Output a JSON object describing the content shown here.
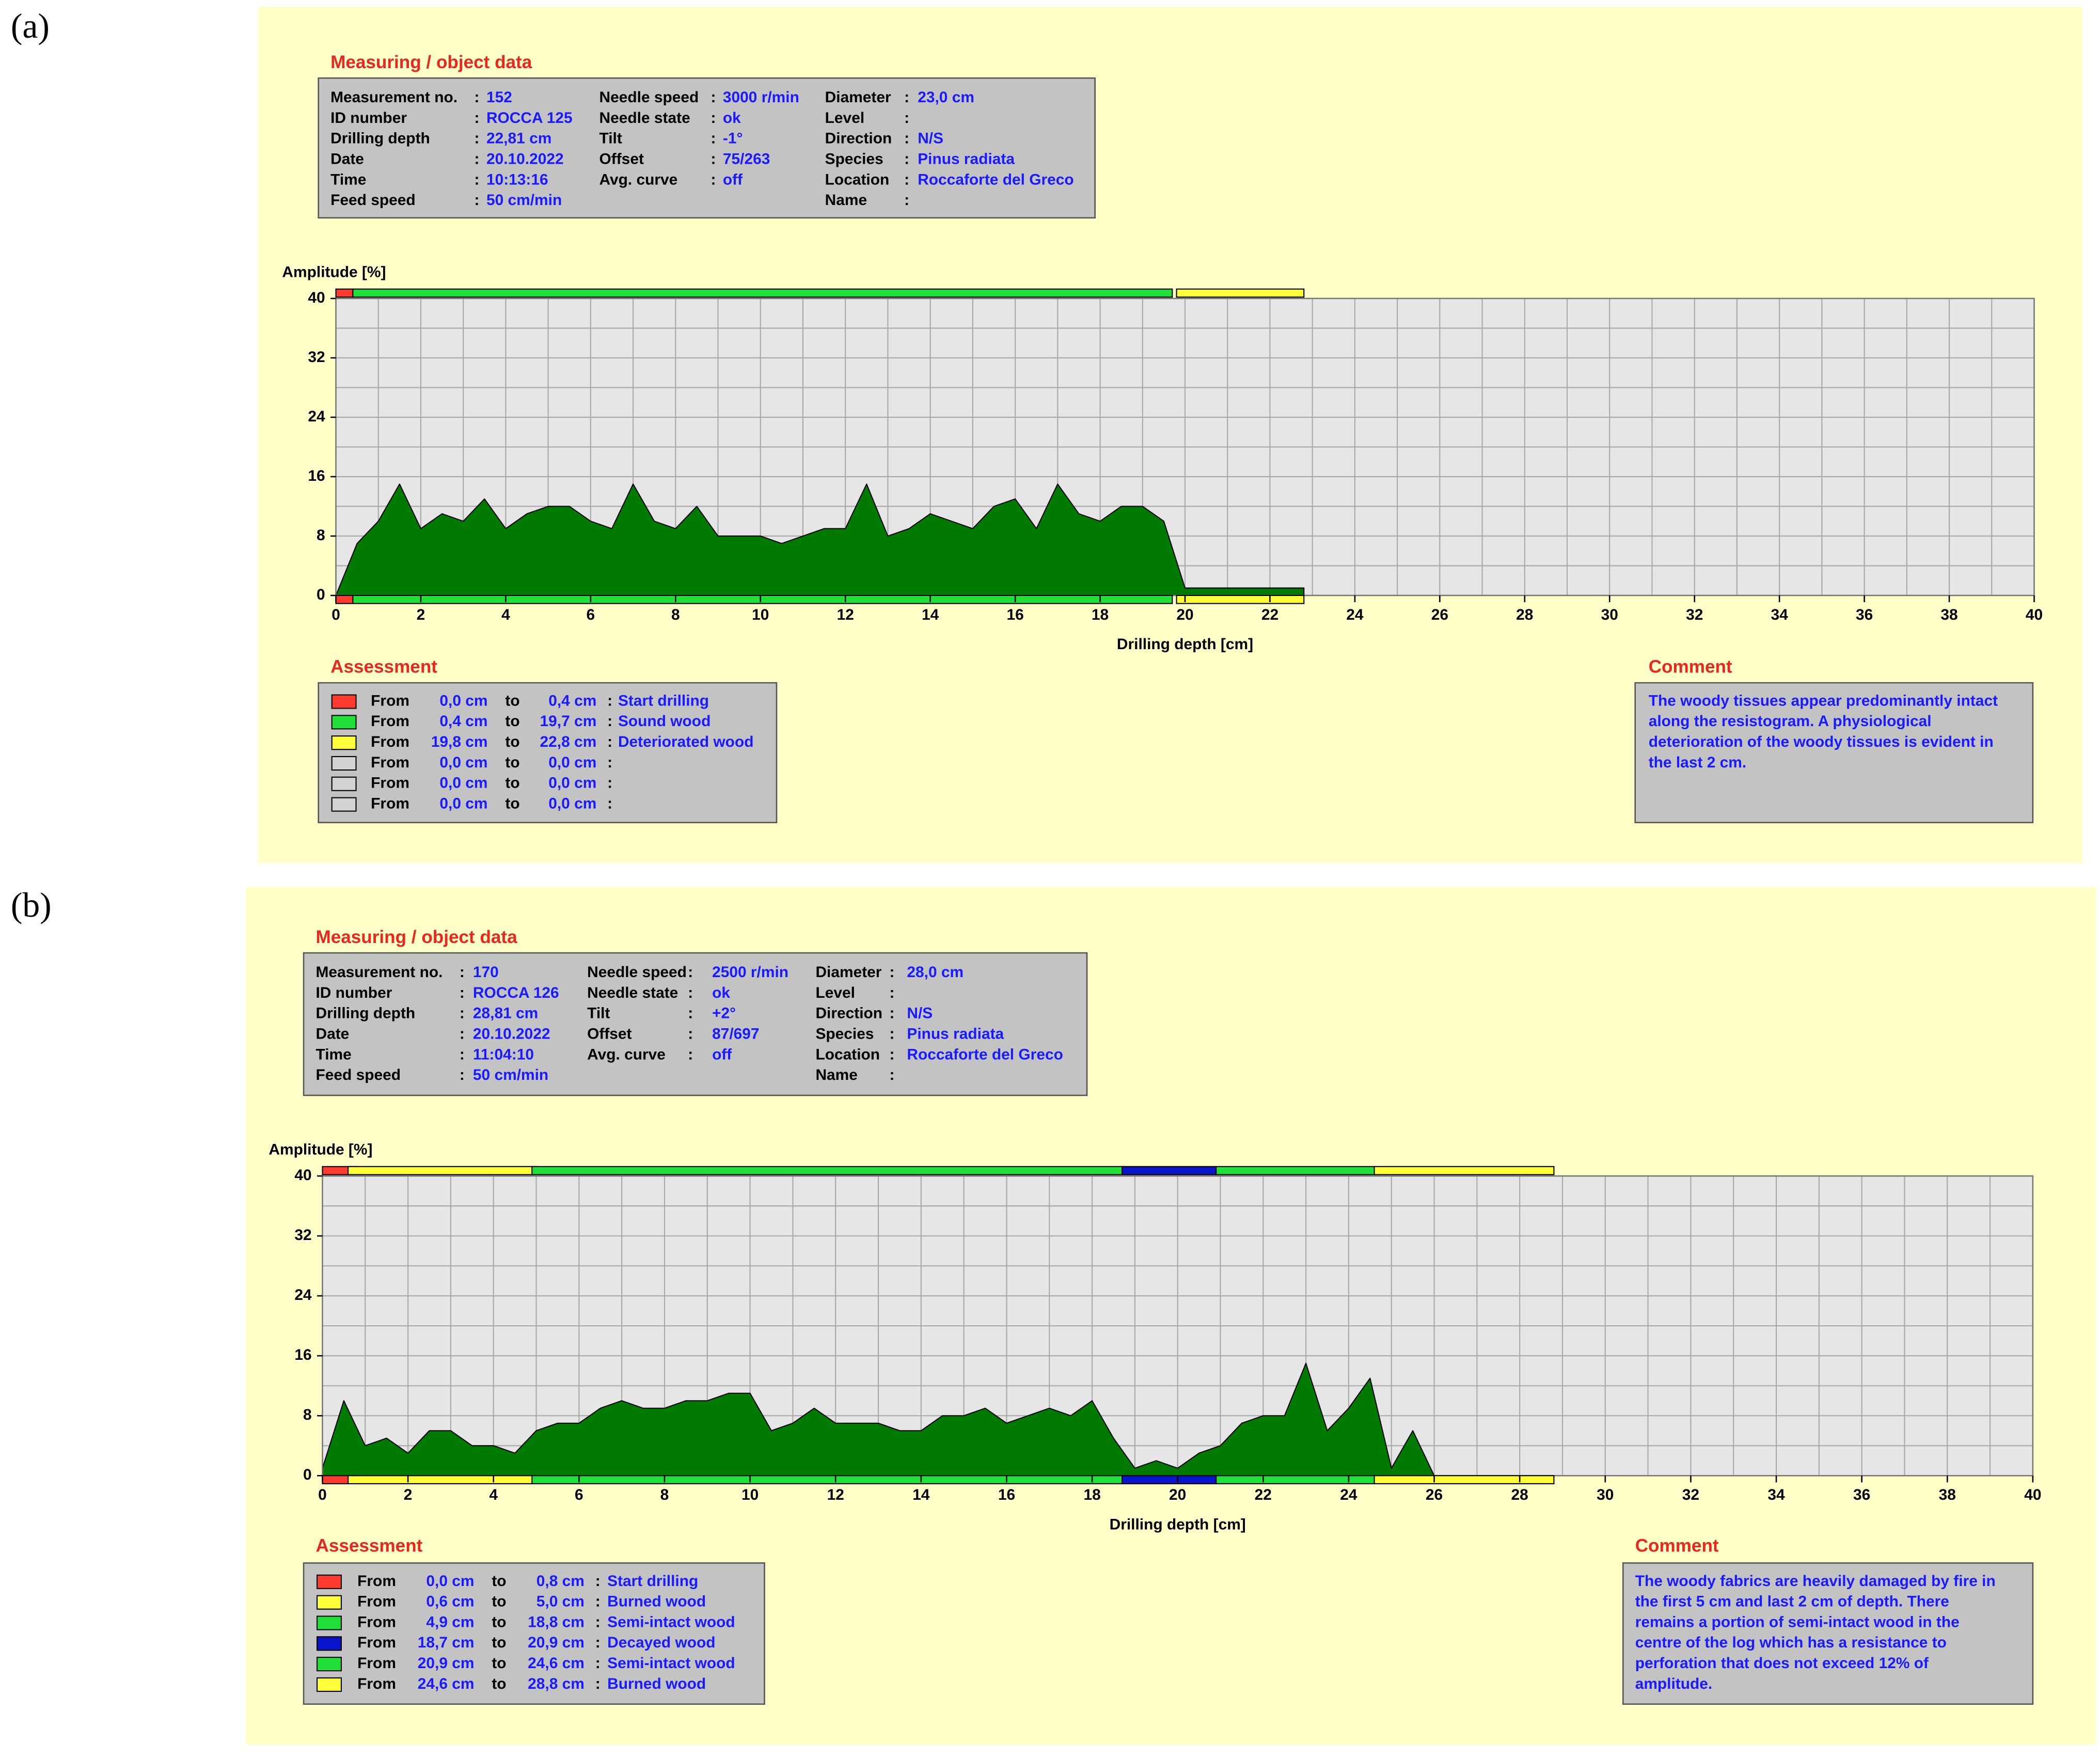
{
  "panels": [
    {
      "label": "(a)",
      "measuring": {
        "title": "Measuring / object data",
        "separator": ":",
        "columns": [
          [
            {
              "label": "Measurement no.",
              "value": "152"
            },
            {
              "label": "ID number",
              "value": "ROCCA 125"
            },
            {
              "label": "Drilling depth",
              "value": "22,81 cm"
            },
            {
              "label": "Date",
              "value": "20.10.2022"
            },
            {
              "label": "Time",
              "value": "10:13:16"
            },
            {
              "label": "Feed speed",
              "value": "50 cm/min"
            }
          ],
          [
            {
              "label": "Needle speed",
              "value": "3000 r/min"
            },
            {
              "label": "Needle state",
              "value": "ok"
            },
            {
              "label": "Tilt",
              "value": "-1°"
            },
            {
              "label": "Offset",
              "value": "75/263"
            },
            {
              "label": "Avg. curve",
              "value": "off"
            }
          ],
          [
            {
              "label": "Diameter",
              "value": "23,0 cm"
            },
            {
              "label": "Level"
            },
            {
              "label": "Direction",
              "value": "N/S"
            },
            {
              "label": "Species",
              "value": "Pinus radiata"
            },
            {
              "label": "Location",
              "value": "Roccaforte del Greco"
            },
            {
              "label": "Name"
            }
          ]
        ]
      },
      "assessment": {
        "title": "Assessment",
        "from_text": "From",
        "to_text": "to",
        "separator": ":",
        "rows": [
          {
            "color": "#ff3b2f",
            "from": {
              "value": 0,
              "label": "0,0 cm"
            },
            "to": {
              "value": 0.4,
              "label": "0,4 cm"
            },
            "name": "Start drilling"
          },
          {
            "color": "#22e03a",
            "from": {
              "value": 0.4,
              "label": "0,4 cm"
            },
            "to": {
              "value": 19.7,
              "label": "19,7 cm"
            },
            "name": "Sound wood"
          },
          {
            "color": "#ffff3a",
            "from": {
              "value": 19.8,
              "label": "19,8 cm"
            },
            "to": {
              "value": 22.8,
              "label": "22,8 cm"
            },
            "name": "Deteriorated wood"
          },
          {
            "color": "#d2d2d2",
            "from": {
              "value": 0,
              "label": "0,0 cm"
            },
            "to": {
              "value": 0,
              "label": "0,0 cm"
            }
          },
          {
            "color": "#d2d2d2",
            "from": {
              "value": 0,
              "label": "0,0 cm"
            },
            "to": {
              "value": 0,
              "label": "0,0 cm"
            }
          },
          {
            "color": "#d2d2d2",
            "from": {
              "value": 0,
              "label": "0,0 cm"
            },
            "to": {
              "value": 0,
              "label": "0,0 cm"
            }
          }
        ]
      },
      "comment": {
        "title": "Comment",
        "lines": [
          "The woody tissues appear predominantly intact",
          "along the resistogram. A physiological",
          "deterioration of the woody tissues is evident in",
          "the last 2 cm."
        ]
      }
    },
    {
      "label": "(b)",
      "measuring": {
        "title": "Measuring / object data",
        "separator": ":",
        "columns": [
          [
            {
              "label": "Measurement no.",
              "value": "170"
            },
            {
              "label": "ID number",
              "value": "ROCCA 126"
            },
            {
              "label": "Drilling depth",
              "value": "28,81 cm"
            },
            {
              "label": "Date",
              "value": "20.10.2022"
            },
            {
              "label": "Time",
              "value": "11:04:10"
            },
            {
              "label": "Feed speed",
              "value": "50 cm/min"
            }
          ],
          [
            {
              "label": "Needle speed",
              "value": "2500 r/min"
            },
            {
              "label": "Needle state",
              "value": "ok"
            },
            {
              "label": "Tilt",
              "value": "+2°"
            },
            {
              "label": "Offset",
              "value": "87/697"
            },
            {
              "label": "Avg. curve",
              "value": "off"
            }
          ],
          [
            {
              "label": "Diameter",
              "value": "28,0 cm"
            },
            {
              "label": "Level"
            },
            {
              "label": "Direction",
              "value": "N/S"
            },
            {
              "label": "Species",
              "value": "Pinus radiata"
            },
            {
              "label": "Location",
              "value": "Roccaforte del Greco"
            },
            {
              "label": "Name"
            }
          ]
        ]
      },
      "assessment": {
        "title": "Assessment",
        "from_text": "From",
        "to_text": "to",
        "separator": ":",
        "rows": [
          {
            "color": "#ff3b2f",
            "from": {
              "value": 0,
              "label": "0,0 cm"
            },
            "to": {
              "value": 0.8,
              "label": "0,8 cm"
            },
            "name": "Start drilling"
          },
          {
            "color": "#ffff3a",
            "from": {
              "value": 0.6,
              "label": "0,6 cm"
            },
            "to": {
              "value": 5.0,
              "label": "5,0 cm"
            },
            "name": "Burned wood"
          },
          {
            "color": "#22e03a",
            "from": {
              "value": 4.9,
              "label": "4,9 cm"
            },
            "to": {
              "value": 18.8,
              "label": "18,8 cm"
            },
            "name": "Semi-intact wood"
          },
          {
            "color": "#0a14c8",
            "from": {
              "value": 18.7,
              "label": "18,7 cm"
            },
            "to": {
              "value": 20.9,
              "label": "20,9 cm"
            },
            "name": "Decayed wood"
          },
          {
            "color": "#22e03a",
            "from": {
              "value": 20.9,
              "label": "20,9 cm"
            },
            "to": {
              "value": 24.6,
              "label": "24,6 cm"
            },
            "name": "Semi-intact wood"
          },
          {
            "color": "#ffff3a",
            "from": {
              "value": 24.6,
              "label": "24,6 cm"
            },
            "to": {
              "value": 28.8,
              "label": "28,8 cm"
            },
            "name": "Burned wood"
          }
        ]
      },
      "comment": {
        "title": "Comment",
        "lines": [
          "The woody fabrics are heavily damaged by fire in",
          "the first 5 cm and last 2 cm of depth. There",
          "remains a portion of semi-intact wood in the",
          "centre of the log which has a resistance to",
          "perforation that does not exceed 12% of",
          "amplitude."
        ]
      }
    }
  ],
  "chart_data": [
    {
      "type": "area",
      "ylabel": "Amplitude [%]",
      "xlabel": "Drilling depth [cm]",
      "color": "#007a00",
      "x": [
        0,
        0.5,
        1,
        1.5,
        2,
        2.5,
        3,
        3.5,
        4,
        4.5,
        5,
        5.5,
        6,
        6.5,
        7,
        7.5,
        8,
        8.5,
        9,
        9.5,
        10,
        10.5,
        11,
        11.5,
        12,
        12.5,
        13,
        13.5,
        14,
        14.5,
        15,
        15.5,
        16,
        16.5,
        17,
        17.5,
        18,
        18.5,
        19,
        19.5,
        20,
        20.5,
        21,
        21.5,
        22,
        22.5,
        22.8
      ],
      "values": [
        0,
        7,
        10,
        15,
        9,
        11,
        10,
        13,
        9,
        11,
        12,
        12,
        10,
        9,
        15,
        10,
        9,
        12,
        8,
        8,
        8,
        7,
        8,
        9,
        9,
        15,
        8,
        9,
        11,
        10,
        9,
        12,
        13,
        9,
        15,
        11,
        10,
        12,
        12,
        10,
        1,
        1,
        1,
        1,
        1,
        1,
        1
      ],
      "xlim": [
        0,
        40
      ],
      "ylim": [
        0,
        40
      ],
      "xticks": [
        0,
        2,
        4,
        6,
        8,
        10,
        12,
        14,
        16,
        18,
        20,
        22,
        24,
        26,
        28,
        30,
        32,
        34,
        36,
        38,
        40
      ],
      "yticks": [
        0,
        8,
        16,
        24,
        32,
        40
      ],
      "grid": true,
      "xgrid_step": 1,
      "ygrid_step": 4
    },
    {
      "type": "area",
      "ylabel": "Amplitude [%]",
      "xlabel": "Drilling depth [cm]",
      "color": "#007a00",
      "x": [
        0,
        0.5,
        1,
        1.5,
        2,
        2.5,
        3,
        3.5,
        4,
        4.5,
        5,
        5.5,
        6,
        6.5,
        7,
        7.5,
        8,
        8.5,
        9,
        9.5,
        10,
        10.5,
        11,
        11.5,
        12,
        12.5,
        13,
        13.5,
        14,
        14.5,
        15,
        15.5,
        16,
        16.5,
        17,
        17.5,
        18,
        18.5,
        19,
        19.5,
        20,
        20.5,
        21,
        21.5,
        22,
        22.5,
        23,
        23.5,
        24,
        24.5,
        25,
        25.5,
        26,
        26.5,
        27,
        27.5,
        28,
        28.5,
        28.8
      ],
      "values": [
        1,
        10,
        4,
        5,
        3,
        6,
        6,
        4,
        4,
        3,
        6,
        7,
        7,
        9,
        10,
        9,
        9,
        10,
        10,
        11,
        11,
        6,
        7,
        9,
        7,
        7,
        7,
        6,
        6,
        8,
        8,
        9,
        7,
        8,
        9,
        8,
        10,
        5,
        1,
        2,
        1,
        3,
        4,
        7,
        8,
        8,
        15,
        6,
        9,
        13,
        1,
        6,
        0,
        0,
        0,
        0,
        0,
        0,
        0
      ],
      "xlim": [
        0,
        40
      ],
      "ylim": [
        0,
        40
      ],
      "xticks": [
        0,
        2,
        4,
        6,
        8,
        10,
        12,
        14,
        16,
        18,
        20,
        22,
        24,
        26,
        28,
        30,
        32,
        34,
        36,
        38,
        40
      ],
      "yticks": [
        0,
        8,
        16,
        24,
        32,
        40
      ],
      "grid": true,
      "xgrid_step": 1,
      "ygrid_step": 4
    }
  ]
}
